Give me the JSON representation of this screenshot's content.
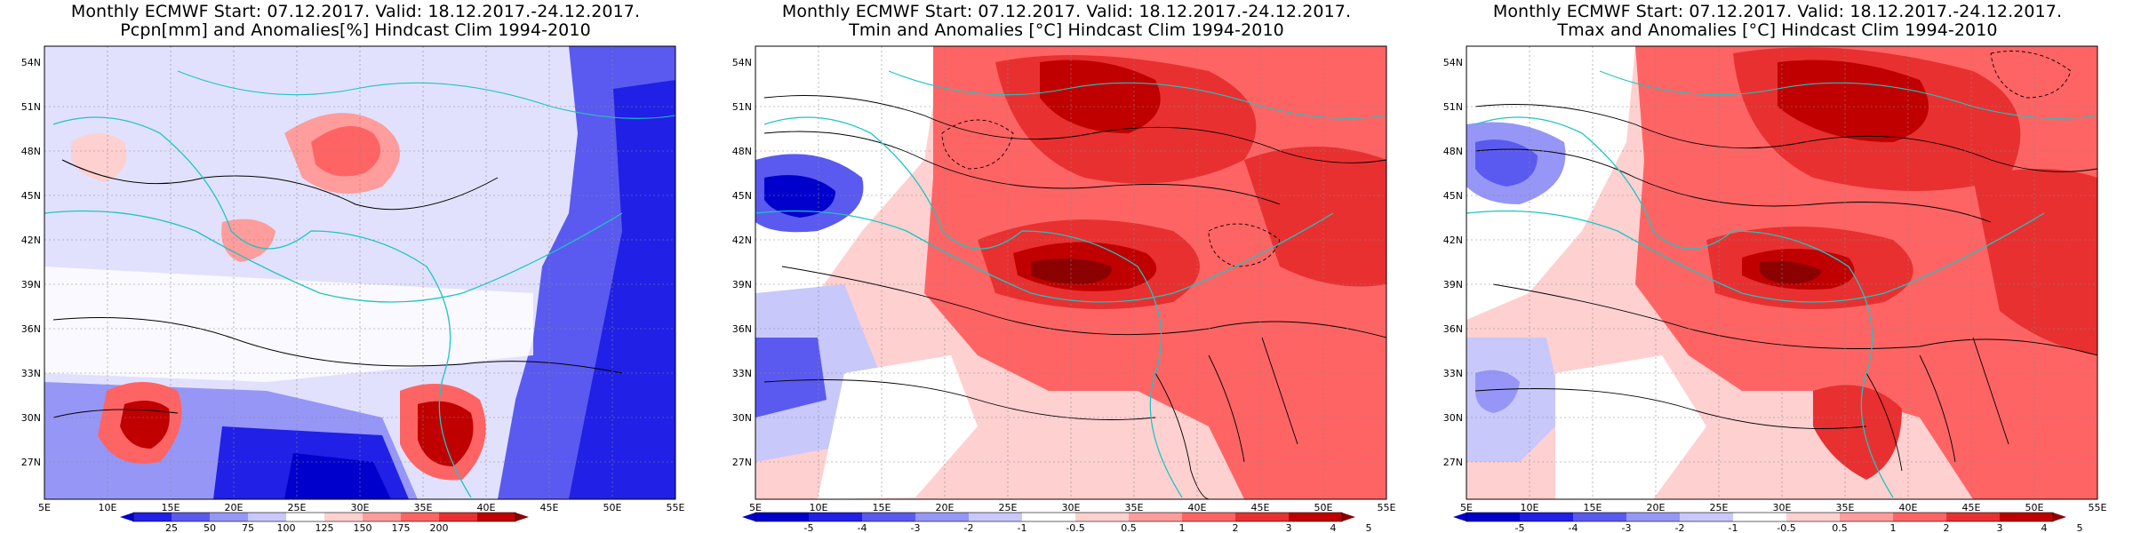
{
  "panels": [
    {
      "title_line1": "Monthly ECMWF Start: 07.12.2017. Valid: 18.12.2017.-24.12.2017.",
      "title_line2": "Pcpn[mm] and Anomalies[%] Hindcast Clim 1994-2010",
      "lat_labels": [
        "54N",
        "51N",
        "48N",
        "45N",
        "42N",
        "39N",
        "36N",
        "33N",
        "30N",
        "27N"
      ],
      "lon_labels": [
        "5E",
        "10E",
        "15E",
        "20E",
        "25E",
        "30E",
        "35E",
        "40E",
        "45E",
        "50E",
        "55E"
      ],
      "colorbar_labels": [
        "25",
        "50",
        "75",
        "100",
        "125",
        "150",
        "175",
        "200"
      ],
      "colors": [
        "#0000cc",
        "#2020e6",
        "#5a5af0",
        "#9696f7",
        "#c8c8fb",
        "#ffffff",
        "#ffd0d0",
        "#ff9c9c",
        "#ff6464",
        "#e83030",
        "#c00000",
        "#8b0000"
      ]
    },
    {
      "title_line1": "Monthly ECMWF Start: 07.12.2017. Valid: 18.12.2017.-24.12.2017.",
      "title_line2": "Tmin and Anomalies [°C] Hindcast Clim 1994-2010",
      "lat_labels": [
        "54N",
        "51N",
        "48N",
        "45N",
        "42N",
        "39N",
        "36N",
        "33N",
        "30N",
        "27N"
      ],
      "lon_labels": [
        "5E",
        "10E",
        "15E",
        "20E",
        "25E",
        "30E",
        "35E",
        "40E",
        "45E",
        "50E",
        "55E"
      ],
      "colorbar_labels": [
        "-5",
        "-4",
        "-3",
        "-2",
        "-1",
        "-0.5",
        "0.5",
        "1",
        "2",
        "3",
        "4",
        "5"
      ],
      "colors": [
        "#0000cc",
        "#2020e6",
        "#5a5af0",
        "#9696f7",
        "#c8c8fb",
        "#ffffff",
        "#ffd0d0",
        "#ff9c9c",
        "#ff6464",
        "#e83030",
        "#c00000",
        "#8b0000"
      ]
    },
    {
      "title_line1": "Monthly ECMWF Start: 07.12.2017. Valid: 18.12.2017.-24.12.2017.",
      "title_line2": "Tmax and Anomalies [°C] Hindcast Clim 1994-2010",
      "lat_labels": [
        "54N",
        "51N",
        "48N",
        "45N",
        "42N",
        "39N",
        "36N",
        "33N",
        "30N",
        "27N"
      ],
      "lon_labels": [
        "5E",
        "10E",
        "15E",
        "20E",
        "25E",
        "30E",
        "35E",
        "40E",
        "45E",
        "50E",
        "55E"
      ],
      "colorbar_labels": [
        "-5",
        "-4",
        "-3",
        "-2",
        "-1",
        "-0.5",
        "0.5",
        "1",
        "2",
        "3",
        "4",
        "5"
      ],
      "colors": [
        "#0000cc",
        "#2020e6",
        "#5a5af0",
        "#9696f7",
        "#c8c8fb",
        "#ffffff",
        "#ffd0d0",
        "#ff9c9c",
        "#ff6464",
        "#e83030",
        "#c00000",
        "#8b0000"
      ]
    }
  ]
}
